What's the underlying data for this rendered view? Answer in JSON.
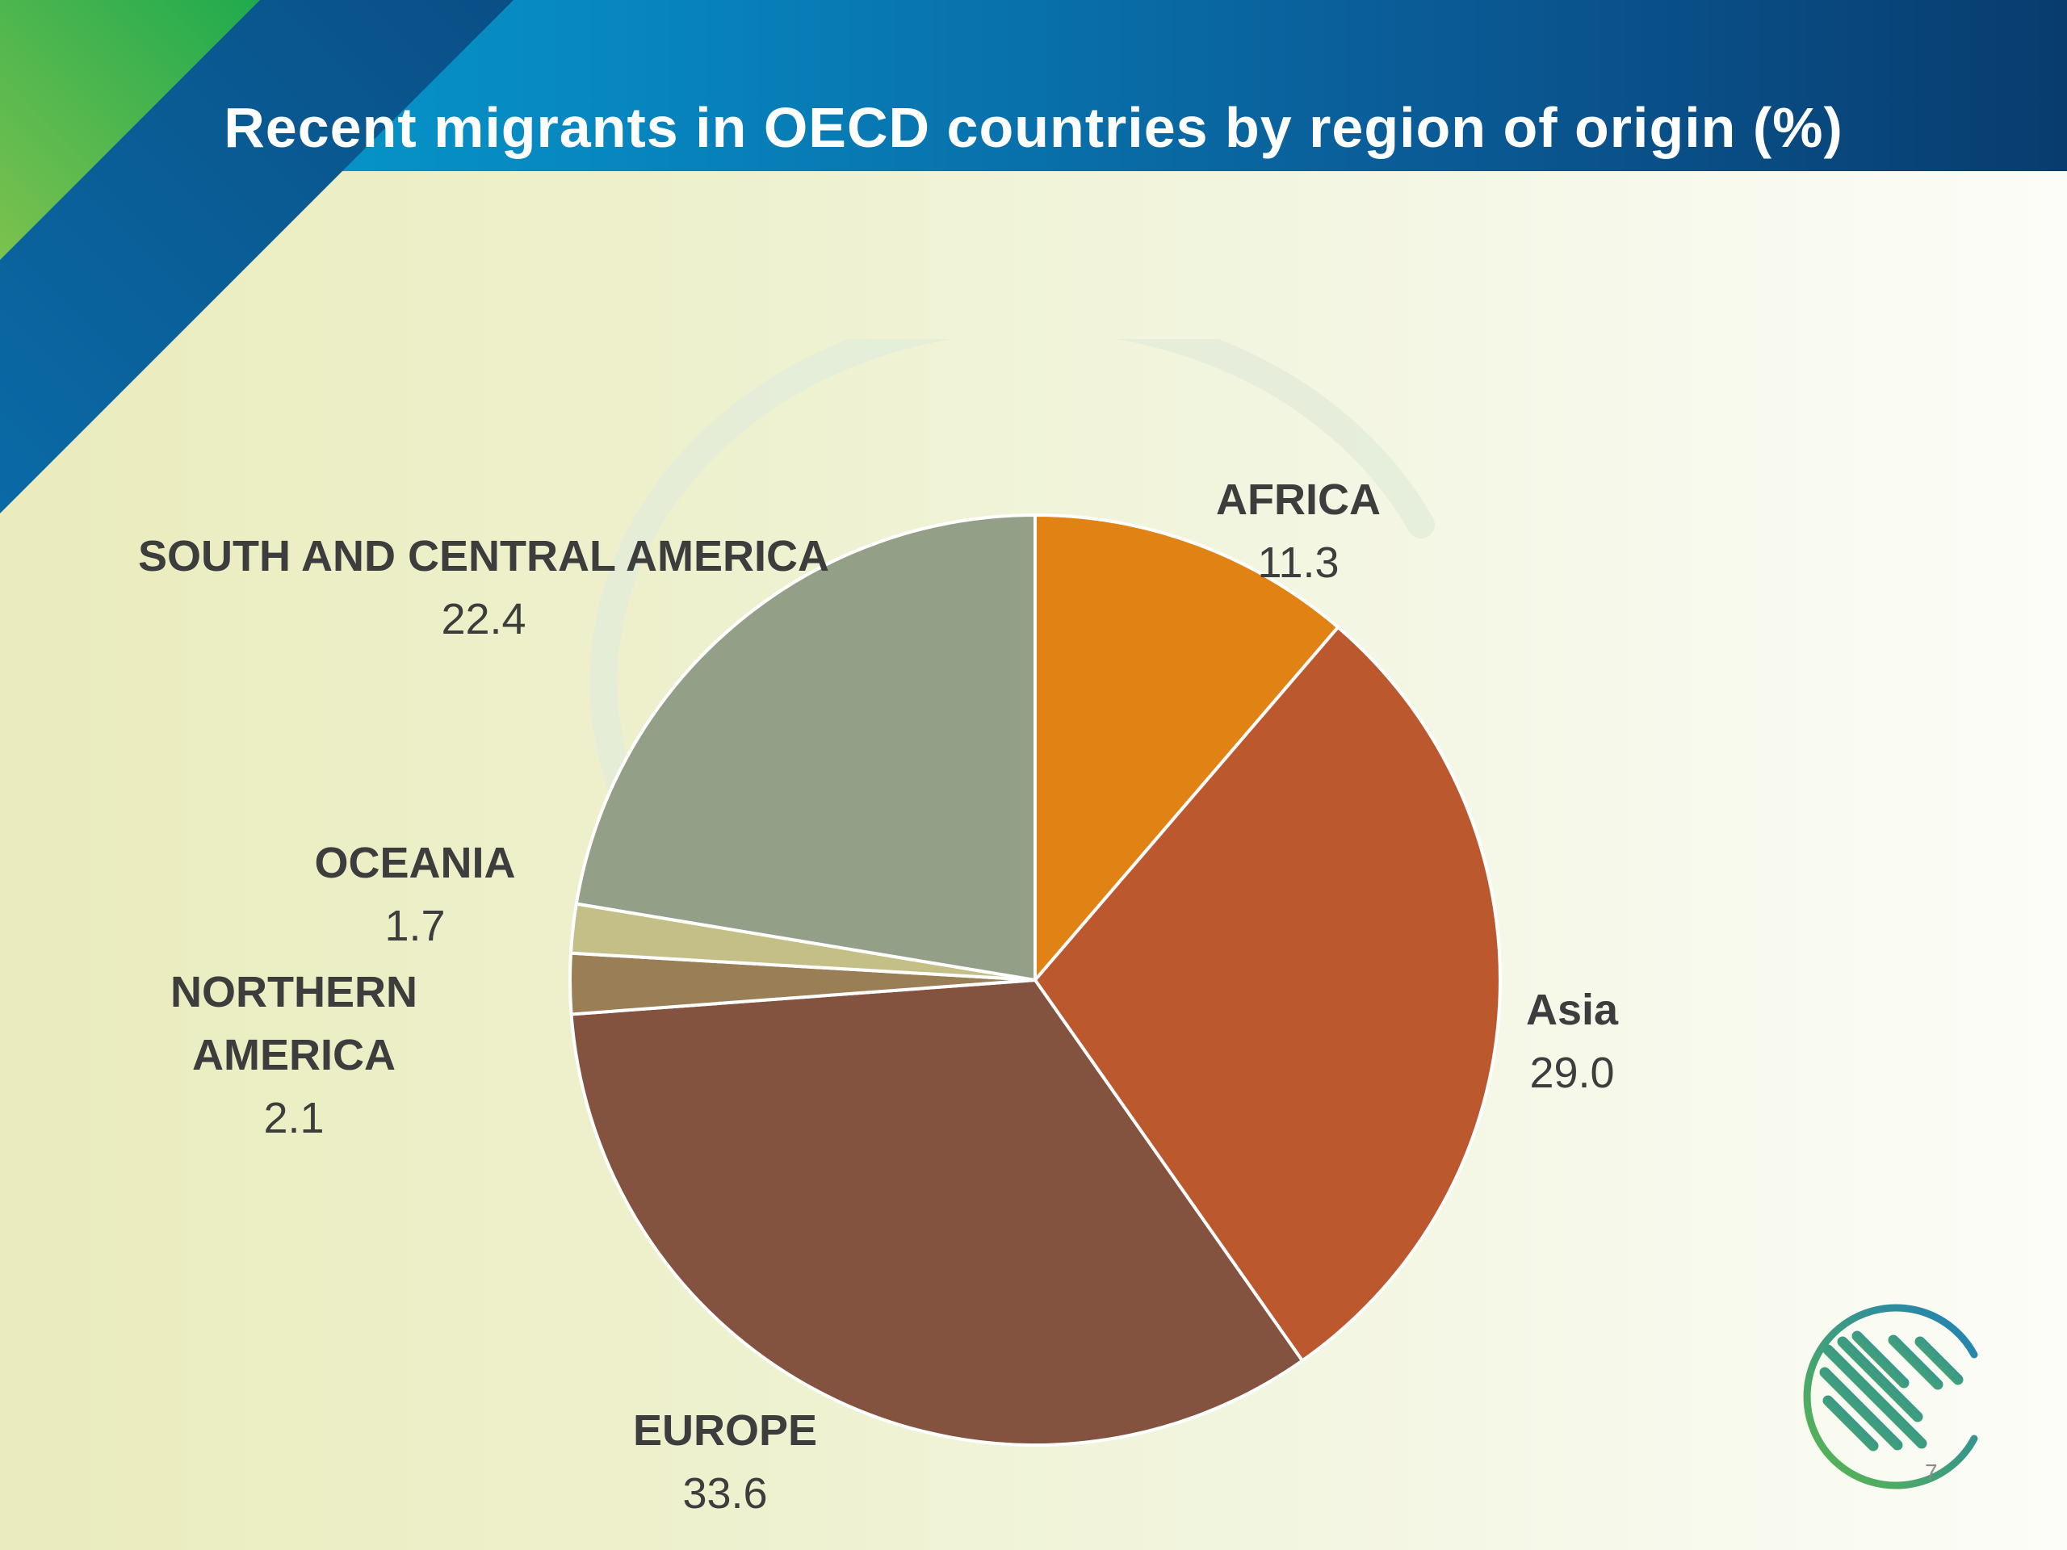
{
  "slide": {
    "title": "Recent migrants in OECD countries by region of origin (%)",
    "page_number": "7"
  },
  "chart_data": {
    "type": "pie",
    "title": "Recent migrants in OECD countries by region of origin (%)",
    "start_angle_deg": 0,
    "direction": "clockwise",
    "slices": [
      {
        "label": "AFRICA",
        "value": 11.3,
        "value_label": "11.3",
        "color": "#e08214"
      },
      {
        "label": "Asia",
        "value": 29.0,
        "value_label": "29.0",
        "color": "#bc582e"
      },
      {
        "label": "EUROPE",
        "value": 33.6,
        "value_label": "33.6",
        "color": "#845340"
      },
      {
        "label": "NORTHERN AMERICA",
        "value": 2.1,
        "value_label": "2.1",
        "color": "#9a7f56"
      },
      {
        "label": "OCEANIA",
        "value": 1.7,
        "value_label": "1.7",
        "color": "#c4be87"
      },
      {
        "label": "SOUTH AND CENTRAL AMERICA",
        "value": 22.4,
        "value_label": "22.4",
        "color": "#939f87"
      }
    ],
    "data_labels": "outside"
  },
  "labels": {
    "africa": {
      "name": "AFRICA",
      "value": "11.3"
    },
    "asia": {
      "name": "Asia",
      "value": "29.0"
    },
    "europe": {
      "name": "EUROPE",
      "value": "33.6"
    },
    "northern_america": {
      "name_line1": "NORTHERN",
      "name_line2": "AMERICA",
      "value": "2.1"
    },
    "oceania": {
      "name": "OCEANIA",
      "value": "1.7"
    },
    "south_central_america": {
      "name": "SOUTH AND CENTRAL AMERICA",
      "value": "22.4"
    }
  },
  "colors": {
    "header_start": "#05a3cf",
    "header_end": "#083c6e",
    "corner_green": "#5cb94a",
    "slice_border": "#ffffff"
  }
}
